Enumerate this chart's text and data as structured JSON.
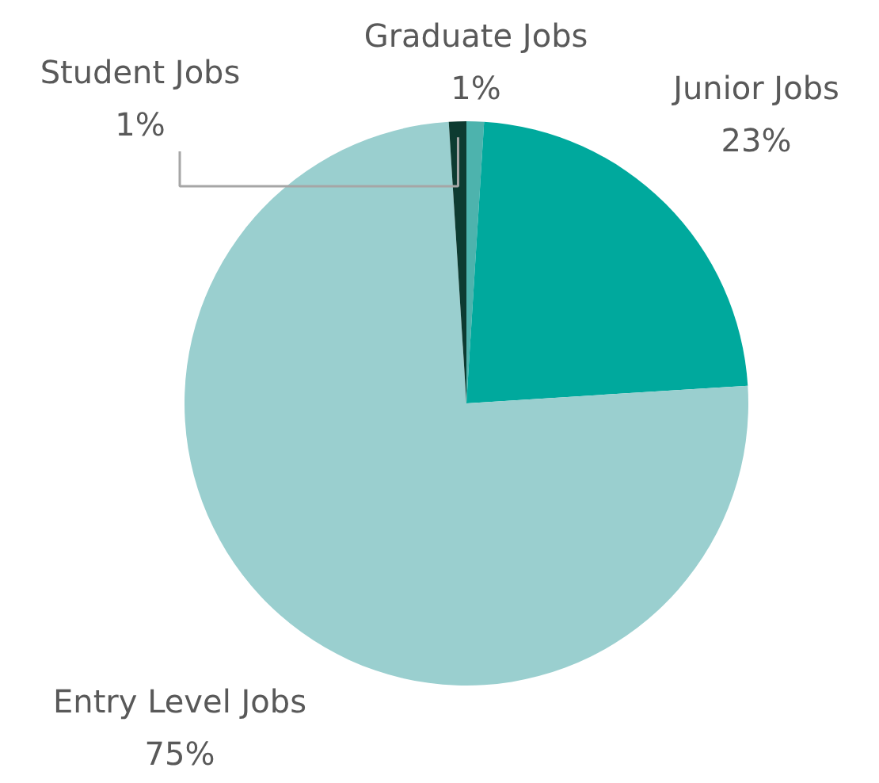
{
  "chart_data": {
    "type": "pie",
    "categories": [
      "Graduate Jobs",
      "Junior Jobs",
      "Entry Level Jobs",
      "Student Jobs"
    ],
    "values": [
      1,
      23,
      75,
      1
    ],
    "colors": [
      "#4db3ad",
      "#00a99d",
      "#9acfcf",
      "#0d3b31"
    ],
    "value_labels": [
      "1%",
      "23%",
      "75%",
      "1%"
    ]
  }
}
